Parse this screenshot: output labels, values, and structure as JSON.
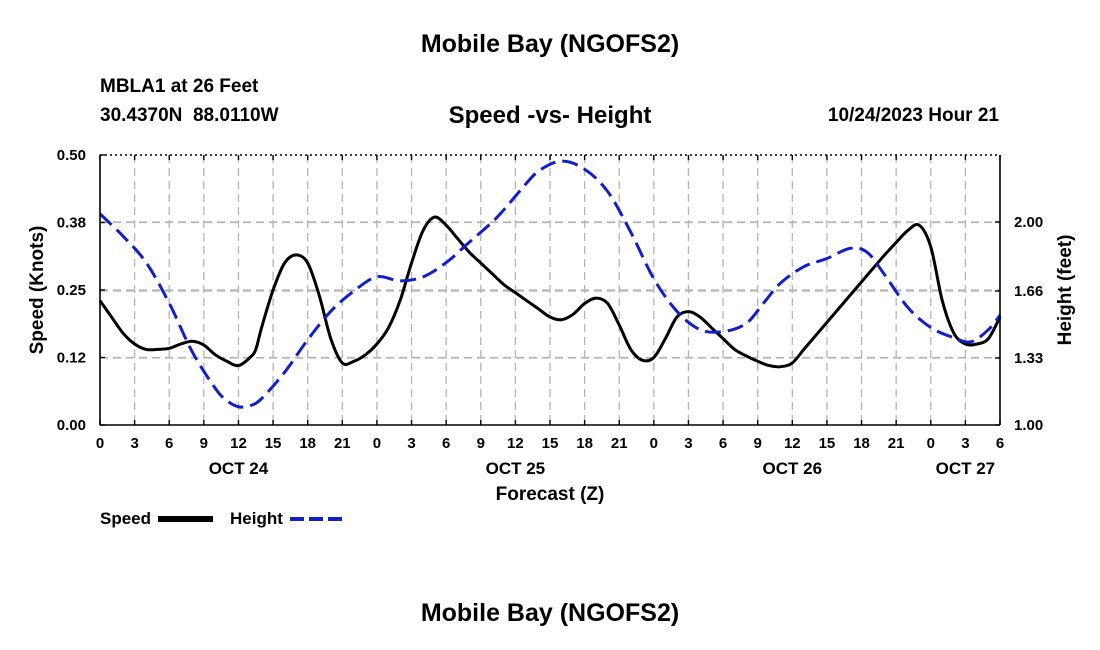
{
  "header": {
    "title": "Mobile Bay (NGOFS2)",
    "station": "MBLA1 at 26 Feet",
    "coords": "30.4370N  88.0110W",
    "subtitle": "Speed -vs- Height",
    "forecast_time": "10/24/2023 Hour 21"
  },
  "footer": {
    "title": "Mobile Bay (NGOFS2)"
  },
  "legend": {
    "items": [
      {
        "label": "Speed",
        "color": "#000000",
        "style": "solid"
      },
      {
        "label": "Height",
        "color": "#1020c8",
        "style": "dashed"
      }
    ]
  },
  "chart_data": {
    "type": "line",
    "xlabel": "Forecast (Z)",
    "ylabel_left": "Speed (Knots)",
    "ylabel_right": "Height (feet)",
    "xlim": [
      0,
      78
    ],
    "ylim_left": [
      0,
      0.5
    ],
    "ylim_right": [
      1.0,
      2.33
    ],
    "grid": true,
    "x_ticks": [
      0,
      3,
      6,
      9,
      12,
      15,
      18,
      21,
      24,
      27,
      30,
      33,
      36,
      39,
      42,
      45,
      48,
      51,
      54,
      57,
      60,
      63,
      66,
      69,
      72,
      75,
      78
    ],
    "x_tick_labels": [
      "0",
      "3",
      "6",
      "9",
      "12",
      "15",
      "18",
      "21",
      "0",
      "3",
      "6",
      "9",
      "12",
      "15",
      "18",
      "21",
      "0",
      "3",
      "6",
      "9",
      "12",
      "15",
      "18",
      "21",
      "0",
      "3",
      "6"
    ],
    "date_labels": [
      {
        "label": "OCT 24",
        "x": 12
      },
      {
        "label": "OCT 25",
        "x": 36
      },
      {
        "label": "OCT 26",
        "x": 60
      },
      {
        "label": "OCT 27",
        "x": 75
      }
    ],
    "y_left_ticks": [
      0.0,
      0.125,
      0.25,
      0.375,
      0.5
    ],
    "y_left_tick_labels": [
      "0.00",
      "0.12",
      "0.25",
      "0.38",
      "0.50"
    ],
    "y_right_ticks": [
      1.0,
      1.33,
      1.66,
      2.0
    ],
    "y_right_tick_labels": [
      "1.00",
      "1.33",
      "1.66",
      "2.00"
    ],
    "series": [
      {
        "name": "Speed",
        "axis": "left",
        "color": "#000000",
        "dash": false,
        "x": [
          0,
          1,
          2,
          3,
          4,
          5,
          6,
          7,
          8,
          9,
          10,
          11,
          12,
          13,
          13.5,
          14,
          15,
          16,
          17,
          18,
          19,
          20,
          21,
          22,
          23,
          24,
          25,
          26,
          27,
          28,
          29,
          30,
          31,
          32,
          33,
          34,
          35,
          36,
          37,
          38,
          39,
          40,
          41,
          42,
          43,
          44,
          45,
          46,
          47,
          48,
          49,
          50,
          51,
          52,
          53,
          54,
          55,
          56,
          57,
          58,
          59,
          60,
          61,
          62,
          63,
          64,
          65,
          66,
          67,
          68,
          69,
          70,
          71,
          72,
          73,
          74,
          75,
          76,
          77,
          78
        ],
        "values": [
          0.23,
          0.2,
          0.17,
          0.15,
          0.14,
          0.14,
          0.142,
          0.15,
          0.155,
          0.148,
          0.13,
          0.118,
          0.11,
          0.125,
          0.14,
          0.18,
          0.25,
          0.3,
          0.315,
          0.3,
          0.24,
          0.16,
          0.115,
          0.118,
          0.13,
          0.15,
          0.18,
          0.23,
          0.3,
          0.36,
          0.385,
          0.37,
          0.345,
          0.32,
          0.3,
          0.28,
          0.26,
          0.245,
          0.23,
          0.215,
          0.2,
          0.195,
          0.205,
          0.225,
          0.235,
          0.225,
          0.185,
          0.14,
          0.12,
          0.125,
          0.16,
          0.2,
          0.21,
          0.2,
          0.18,
          0.16,
          0.14,
          0.128,
          0.118,
          0.11,
          0.108,
          0.115,
          0.14,
          0.165,
          0.19,
          0.215,
          0.24,
          0.265,
          0.29,
          0.315,
          0.338,
          0.36,
          0.37,
          0.33,
          0.23,
          0.17,
          0.15,
          0.15,
          0.16,
          0.2
        ]
      },
      {
        "name": "Height",
        "axis": "right",
        "color": "#1020c8",
        "dash": true,
        "x": [
          0,
          2,
          4,
          6,
          8,
          10,
          11,
          12,
          13,
          14,
          16,
          18,
          20,
          22,
          24,
          26,
          28,
          30,
          32,
          34,
          35,
          36.5,
          38,
          40,
          42,
          44,
          46,
          48,
          50,
          52,
          54,
          56,
          57.5,
          59,
          61,
          63,
          65,
          66.5,
          68,
          70,
          72,
          74,
          75.5,
          77,
          78
        ],
        "values": [
          2.04,
          1.93,
          1.8,
          1.6,
          1.36,
          1.18,
          1.12,
          1.09,
          1.095,
          1.13,
          1.26,
          1.42,
          1.56,
          1.66,
          1.73,
          1.71,
          1.73,
          1.8,
          1.9,
          2.0,
          2.06,
          2.16,
          2.25,
          2.3,
          2.26,
          2.15,
          1.95,
          1.72,
          1.56,
          1.47,
          1.46,
          1.5,
          1.6,
          1.7,
          1.78,
          1.82,
          1.87,
          1.85,
          1.74,
          1.58,
          1.48,
          1.43,
          1.41,
          1.47,
          1.54
        ]
      }
    ]
  }
}
